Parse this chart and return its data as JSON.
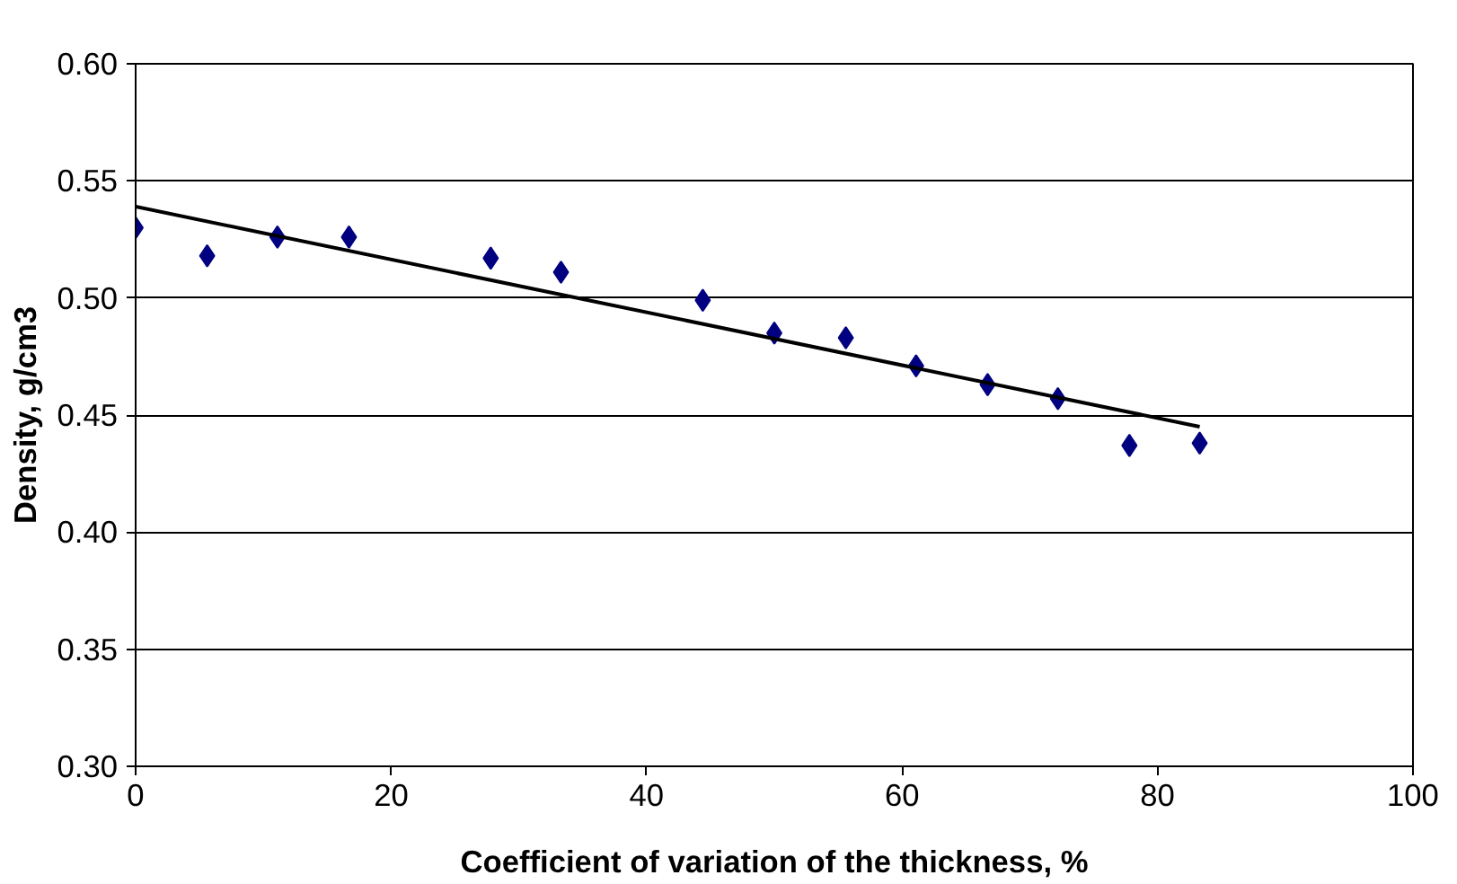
{
  "chart_data": {
    "type": "scatter",
    "xlabel": "Coefficient of variation of the thickness, %",
    "ylabel": "Density, g/cm3",
    "xlim": [
      0,
      100
    ],
    "xticks": [
      0,
      20,
      40,
      60,
      80,
      100
    ],
    "ylim": [
      0.3,
      0.6
    ],
    "yticks": [
      {
        "value": 0.3,
        "label": "0.30"
      },
      {
        "value": 0.35,
        "label": "0.35"
      },
      {
        "value": 0.4,
        "label": "0.40"
      },
      {
        "value": 0.45,
        "label": "0.45"
      },
      {
        "value": 0.5,
        "label": "0.50"
      },
      {
        "value": 0.55,
        "label": "0.55"
      },
      {
        "value": 0.6,
        "label": "0.60"
      }
    ],
    "grid": "y",
    "series": [
      {
        "marker": "diamond",
        "color": "#000080",
        "x": [
          0,
          5.6,
          11.1,
          16.7,
          27.8,
          33.3,
          44.4,
          50,
          55.6,
          61.1,
          66.7,
          72.2,
          77.8,
          83.3
        ],
        "values": [
          0.53,
          0.518,
          0.526,
          0.526,
          0.517,
          0.511,
          0.499,
          0.485,
          0.483,
          0.471,
          0.463,
          0.457,
          0.437,
          0.438
        ]
      },
      {
        "type": "line",
        "color": "#000000",
        "x": [
          0,
          83.3
        ],
        "values": [
          0.539,
          0.445
        ]
      }
    ]
  }
}
